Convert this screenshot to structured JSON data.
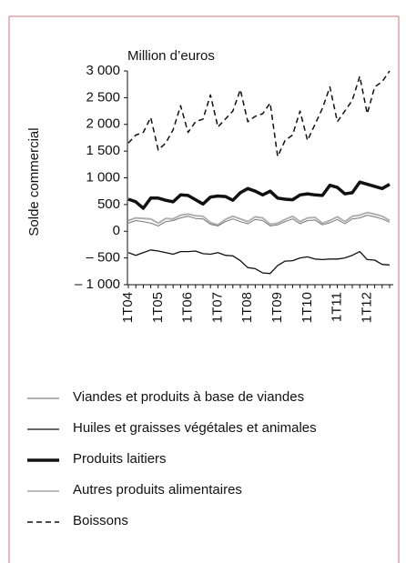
{
  "chart_data": {
    "type": "line",
    "unit_label": "Million d’euros",
    "ylabel": "Solde commercial",
    "categories": [
      "1T04",
      null,
      null,
      null,
      "1T05",
      null,
      null,
      null,
      "1T06",
      null,
      null,
      null,
      "1T07",
      null,
      null,
      null,
      "1T08",
      null,
      null,
      null,
      "1T09",
      null,
      null,
      null,
      "1T10",
      null,
      null,
      null,
      "1T11",
      null,
      null,
      null,
      "1T12",
      null,
      null,
      null
    ],
    "ylim": [
      -1000,
      3000
    ],
    "yticks": [
      {
        "value": 3000,
        "label": "3 000"
      },
      {
        "value": 2500,
        "label": "2 500"
      },
      {
        "value": 2000,
        "label": "2 000"
      },
      {
        "value": 1500,
        "label": "1 500"
      },
      {
        "value": 1000,
        "label": "1 000"
      },
      500,
      0,
      {
        "value": -500,
        "label": "– 500"
      },
      {
        "value": -1000,
        "label": "– 1 000"
      }
    ],
    "series": [
      {
        "name": "Viandes et produits à base de viandes",
        "color": "#b0b0b0",
        "line_width": 2,
        "dashed": false,
        "values": [
          200,
          250,
          240,
          230,
          150,
          240,
          230,
          300,
          320,
          290,
          280,
          160,
          120,
          220,
          280,
          230,
          180,
          270,
          250,
          130,
          150,
          220,
          280,
          180,
          250,
          260,
          150,
          200,
          270,
          180,
          280,
          300,
          350,
          320,
          280,
          200
        ]
      },
      {
        "name": "Huiles et graisses végétales et animales",
        "color": "#111111",
        "line_width": 1.3,
        "dashed": false,
        "values": [
          -400,
          -450,
          -400,
          -350,
          -370,
          -400,
          -430,
          -380,
          -380,
          -370,
          -420,
          -430,
          -400,
          -450,
          -460,
          -550,
          -680,
          -700,
          -780,
          -790,
          -640,
          -560,
          -550,
          -500,
          -480,
          -520,
          -530,
          -520,
          -520,
          -500,
          -450,
          -380,
          -530,
          -540,
          -620,
          -630
        ]
      },
      {
        "name": "Produits laitiers",
        "color": "#111111",
        "line_width": 3.5,
        "dashed": false,
        "values": [
          600,
          550,
          430,
          620,
          620,
          580,
          550,
          680,
          670,
          590,
          510,
          640,
          660,
          650,
          580,
          720,
          800,
          750,
          680,
          750,
          620,
          600,
          590,
          680,
          700,
          680,
          670,
          860,
          820,
          700,
          720,
          920,
          880,
          840,
          800,
          880
        ]
      },
      {
        "name": "Autres produits alimentaires",
        "color": "#777777",
        "line_width": 1,
        "dashed": false,
        "values": [
          150,
          200,
          180,
          150,
          100,
          180,
          200,
          250,
          280,
          240,
          230,
          130,
          100,
          180,
          230,
          180,
          140,
          220,
          200,
          100,
          120,
          180,
          230,
          140,
          200,
          210,
          120,
          160,
          220,
          140,
          230,
          250,
          300,
          270,
          230,
          170
        ]
      },
      {
        "name": "Boissons",
        "color": "#111111",
        "line_width": 1.5,
        "dashed": true,
        "values": [
          1650,
          1800,
          1850,
          2130,
          1520,
          1650,
          1900,
          2350,
          1850,
          2050,
          2100,
          2550,
          1950,
          2100,
          2250,
          2650,
          2050,
          2150,
          2200,
          2400,
          1400,
          1700,
          1800,
          2250,
          1700,
          2000,
          2300,
          2700,
          2050,
          2250,
          2450,
          2900,
          2200,
          2700,
          2800,
          3000
        ]
      }
    ]
  }
}
